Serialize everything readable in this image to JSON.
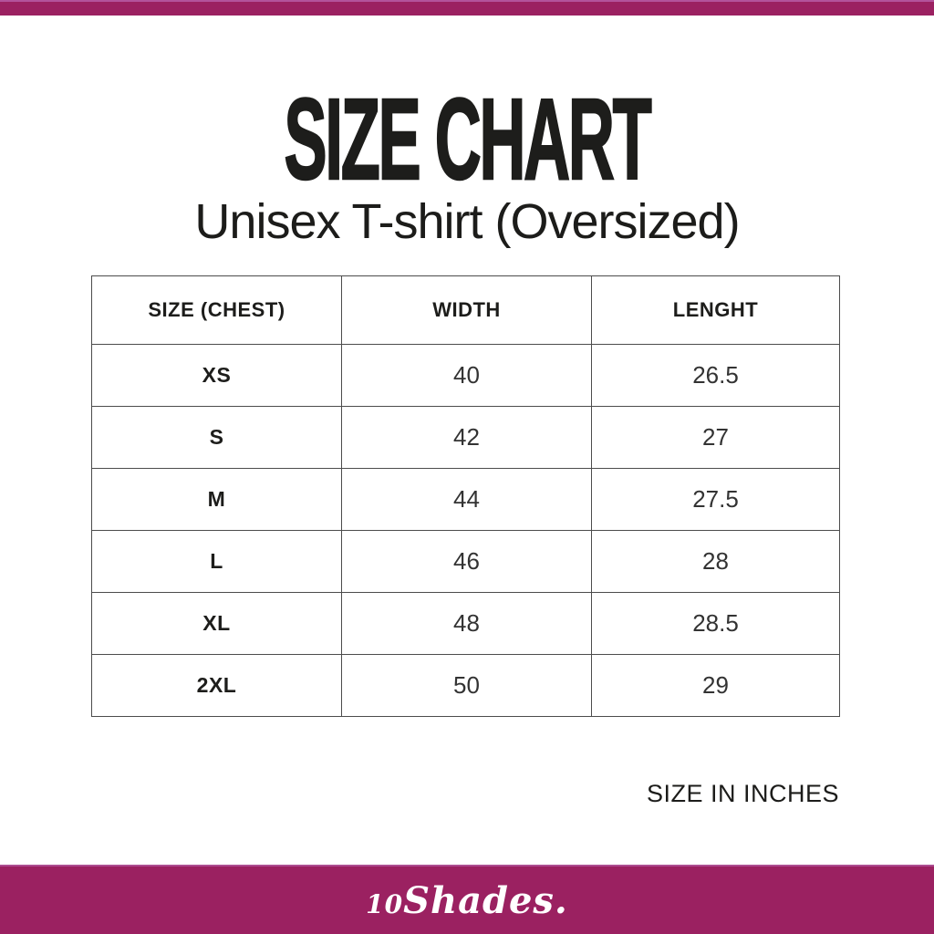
{
  "page": {
    "title": "SIZE CHART",
    "subtitle": "Unisex T-shirt (Oversized)",
    "unit_note": "SIZE IN INCHES",
    "brand": {
      "prefix": "10",
      "name": "Shades."
    }
  },
  "colors": {
    "accent_magenta": "#9B2161",
    "accent_magenta_light": "#B3539B",
    "text": "#1D1D1B",
    "table_border": "#4C4C4C",
    "background": "#FFFFFF",
    "logo_text": "#FFFFFF"
  },
  "chart_data": {
    "type": "table",
    "title": "SIZE CHART",
    "subtitle": "Unisex T-shirt (Oversized)",
    "unit": "SIZE IN INCHES",
    "columns": [
      "SIZE (CHEST)",
      "WIDTH",
      "LENGHT"
    ],
    "rows": [
      {
        "size": "XS",
        "width": "40",
        "length": "26.5"
      },
      {
        "size": "S",
        "width": "42",
        "length": "27"
      },
      {
        "size": "M",
        "width": "44",
        "length": "27.5"
      },
      {
        "size": "L",
        "width": "46",
        "length": "28"
      },
      {
        "size": "XL",
        "width": "48",
        "length": "28.5"
      },
      {
        "size": "2XL",
        "width": "50",
        "length": "29"
      }
    ]
  }
}
